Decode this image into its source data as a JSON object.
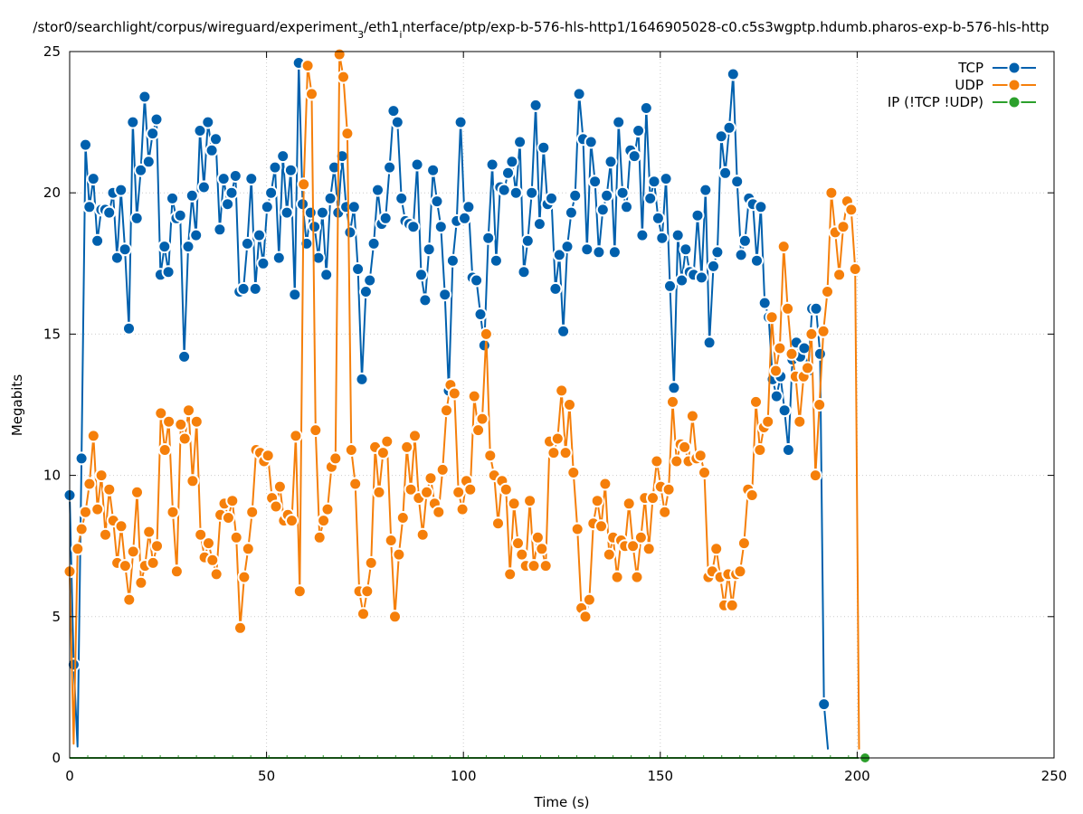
{
  "chart_data": {
    "type": "line",
    "title_parts": [
      {
        "text": "/stor0/searchlight/corpus/wireguard/experiment",
        "sub": false
      },
      {
        "text": "3",
        "sub": true
      },
      {
        "text": "/eth1",
        "sub": false
      },
      {
        "text": "i",
        "sub": true
      },
      {
        "text": "nterface/ptp/exp-b-576-hls-http1/1646905028-c0.c5s3wgptp.hdumb.pharos-exp-b-576-hls-http",
        "sub": false
      }
    ],
    "xlabel": "Time (s)",
    "ylabel": "Megabits",
    "xlim": [
      0,
      250
    ],
    "ylim": [
      0,
      25
    ],
    "xticks": [
      "0",
      "50",
      "100",
      "150",
      "200",
      "250"
    ],
    "yticks": [
      "0",
      "5",
      "10",
      "15",
      "20",
      "25"
    ],
    "grid": true,
    "legend_placement": "top-right",
    "series": [
      {
        "name": "TCP",
        "color": "#0060ad",
        "t0": 0,
        "dt": 1.003,
        "values": [
          9.3,
          3.3,
          0.4,
          10.6,
          21.7,
          19.5,
          20.5,
          18.3,
          19.4,
          19.4,
          19.3,
          20.0,
          17.7,
          20.1,
          18.0,
          15.2,
          22.5,
          19.1,
          20.8,
          23.4,
          21.1,
          22.1,
          22.6,
          17.1,
          18.1,
          17.2,
          19.8,
          19.1,
          19.2,
          14.2,
          18.1,
          19.9,
          18.5,
          22.2,
          20.2,
          22.5,
          21.5,
          21.9,
          18.7,
          20.5,
          19.6,
          20.0,
          20.6,
          16.5,
          16.6,
          18.2,
          20.5,
          16.6,
          18.5,
          17.5,
          19.5,
          20.0,
          20.9,
          17.7,
          21.3,
          19.3,
          20.8,
          16.4,
          24.6,
          19.6,
          18.2,
          19.3,
          18.8,
          17.7,
          19.3,
          17.1,
          19.8,
          20.9,
          19.3,
          21.3,
          19.5,
          18.6,
          19.5,
          17.3,
          13.4,
          16.5,
          16.9,
          18.2,
          20.1,
          18.9,
          19.1,
          20.9,
          22.9,
          22.5,
          19.8,
          19.0,
          18.9,
          18.8,
          21.0,
          17.1,
          16.2,
          18.0,
          20.8,
          19.7,
          18.8,
          16.4,
          13.0,
          17.6,
          19.0,
          22.5,
          19.1,
          19.5,
          17.0,
          16.9,
          15.7,
          14.6,
          18.4,
          21.0,
          17.6,
          20.2,
          20.1,
          20.7,
          21.1,
          20.0,
          21.8,
          17.2,
          18.3,
          20.0,
          23.1,
          18.9,
          21.6,
          19.6,
          19.8,
          16.6,
          17.8,
          15.1,
          18.1,
          19.3,
          19.9,
          23.5,
          21.9,
          18.0,
          21.8,
          20.4,
          17.9,
          19.4,
          19.9,
          21.1,
          17.9,
          22.5,
          20.0,
          19.5,
          21.5,
          21.3,
          22.2,
          18.5,
          23.0,
          19.8,
          20.4,
          19.1,
          18.4,
          20.5,
          16.7,
          13.1,
          18.5,
          16.9,
          18.0,
          17.2,
          17.1,
          19.2,
          17.0,
          20.1,
          14.7,
          17.4,
          17.9,
          22.0,
          20.7,
          22.3,
          24.2,
          20.4,
          17.8,
          18.3,
          19.8,
          19.6,
          17.6,
          19.5,
          16.1,
          15.6,
          13.4,
          12.8,
          13.5,
          12.3,
          10.9,
          14.1,
          14.7,
          14.2,
          14.5,
          13.7,
          15.9,
          15.9,
          14.3,
          1.9,
          0.3
        ],
        "last_point_marker": false
      },
      {
        "name": "UDP",
        "color": "#f57f0a",
        "t0": 0,
        "dt": 1.0075,
        "values": [
          6.6,
          0.5,
          7.4,
          8.1,
          8.7,
          9.7,
          11.4,
          8.8,
          10.0,
          7.9,
          9.5,
          8.4,
          6.9,
          8.2,
          6.8,
          5.6,
          7.3,
          9.4,
          6.2,
          6.8,
          8.0,
          6.9,
          7.5,
          12.2,
          10.9,
          11.9,
          8.7,
          6.6,
          11.8,
          11.3,
          12.3,
          9.8,
          11.9,
          7.9,
          7.1,
          7.6,
          7.0,
          6.5,
          8.6,
          9.0,
          8.5,
          9.1,
          7.8,
          4.6,
          6.4,
          7.4,
          8.7,
          10.9,
          10.8,
          10.5,
          10.7,
          9.2,
          8.9,
          9.6,
          8.4,
          8.6,
          8.4,
          11.4,
          5.9,
          20.3,
          24.5,
          23.5,
          11.6,
          7.8,
          8.4,
          8.8,
          10.3,
          10.6,
          24.9,
          24.1,
          22.1,
          10.9,
          9.7,
          5.9,
          5.1,
          5.9,
          6.9,
          11.0,
          9.4,
          10.8,
          11.2,
          7.7,
          5.0,
          7.2,
          8.5,
          11.0,
          9.5,
          11.4,
          9.2,
          7.9,
          9.4,
          9.9,
          9.0,
          8.7,
          10.2,
          12.3,
          13.2,
          12.9,
          9.4,
          8.8,
          9.8,
          9.5,
          12.8,
          11.6,
          12.0,
          15.0,
          10.7,
          10.0,
          8.3,
          9.8,
          9.5,
          6.5,
          9.0,
          7.6,
          7.2,
          6.8,
          9.1,
          6.8,
          7.8,
          7.4,
          6.8,
          11.2,
          10.8,
          11.3,
          13.0,
          10.8,
          12.5,
          10.1,
          8.1,
          5.3,
          5.0,
          5.6,
          8.3,
          9.1,
          8.2,
          9.7,
          7.2,
          7.8,
          6.4,
          7.7,
          7.5,
          9.0,
          7.5,
          6.4,
          7.8,
          9.2,
          7.4,
          9.2,
          10.5,
          9.6,
          8.7,
          9.5,
          12.6,
          10.5,
          11.1,
          11.0,
          10.5,
          12.1,
          10.6,
          10.7,
          10.1,
          6.4,
          6.6,
          7.4,
          6.4,
          5.4,
          6.5,
          5.4,
          6.5,
          6.6,
          7.6,
          9.5,
          9.3,
          12.6,
          10.9,
          11.7,
          11.9,
          15.6,
          13.7,
          14.5,
          18.1,
          15.9,
          14.3,
          13.5,
          11.9,
          13.5,
          13.8,
          15.0,
          10.0,
          12.5,
          15.1,
          16.5,
          20.0,
          18.6,
          17.1,
          18.8,
          19.7,
          19.4,
          17.3,
          0.3
        ],
        "last_point_marker": false
      },
      {
        "name": "IP (!TCP  !UDP)",
        "color": "#2ca02c",
        "points": [
          [
            0,
            0
          ],
          [
            202,
            0
          ]
        ],
        "marker_only_last": true
      }
    ]
  }
}
